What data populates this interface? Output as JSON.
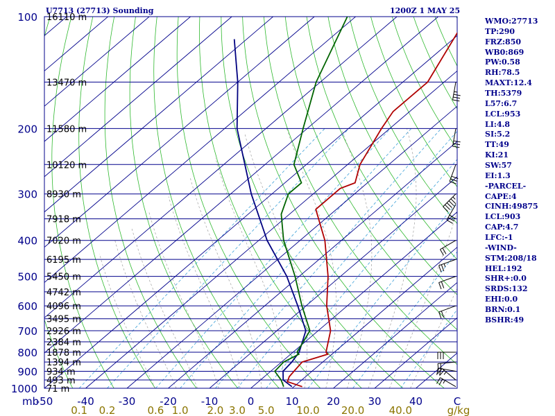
{
  "header": {
    "station": "U7713 (27713) Sounding",
    "time": "1200Z  1 MAY 25"
  },
  "indices": [
    "WMO:27713",
    "TP:290",
    "FRZ:850",
    "WB0:869",
    "PW:0.58",
    "RH:78.5",
    "MAXT:12.4",
    "TH:5379",
    "L57:6.7",
    "LCL:953",
    "LI:4.8",
    "SI:5.2",
    "TT:49",
    "KI:21",
    "SW:57",
    "EI:1.3",
    "-PARCEL-",
    "CAPE:4",
    "CINH:49875",
    "LCL:903",
    "CAP:4.7",
    "LFC:-1",
    "-WIND-",
    "STM:208/18",
    "HEL:192",
    "SHR+:0.0",
    "SRDS:132",
    "EHI:0.0",
    "BRN:0.1",
    "BSHR:49"
  ],
  "colors": {
    "isobar": "#00008b",
    "isotherm": "#00008b",
    "dry_adiabat": "#2db82d",
    "moist_adiabat": "#a0a0a0",
    "mixing_ratio": "#3ca0d8",
    "temperature": "#b00000",
    "dewpoint": "#006400",
    "wetbulb": "#000080",
    "axis_text": "#00008b",
    "mixing_text": "#8b7500"
  },
  "chart_data": {
    "type": "skew-t",
    "pressure_range": [
      1000,
      100
    ],
    "temperature_range": [
      -50,
      50
    ],
    "pressure_ticks": [
      {
        "p": 100,
        "label": "100"
      },
      {
        "p": 200,
        "label": "200"
      },
      {
        "p": 300,
        "label": "300"
      },
      {
        "p": 400,
        "label": "400"
      },
      {
        "p": 500,
        "label": "500"
      },
      {
        "p": 600,
        "label": "600"
      },
      {
        "p": 700,
        "label": "700"
      },
      {
        "p": 800,
        "label": "800"
      },
      {
        "p": 900,
        "label": "900"
      },
      {
        "p": 1000,
        "label": "1000"
      }
    ],
    "pressure_unit": "mb",
    "temperature_ticks": [
      {
        "t": -50,
        "label": "-50"
      },
      {
        "t": -40,
        "label": "-40"
      },
      {
        "t": -30,
        "label": "-30"
      },
      {
        "t": -20,
        "label": "-20"
      },
      {
        "t": -10,
        "label": "-10"
      },
      {
        "t": 0,
        "label": "0"
      },
      {
        "t": 10,
        "label": "10"
      },
      {
        "t": 20,
        "label": "20"
      },
      {
        "t": 30,
        "label": "30"
      },
      {
        "t": 40,
        "label": "40"
      }
    ],
    "temperature_unit": "C",
    "mixing_ratio_labels": [
      {
        "w": 0.1,
        "label": "0.1"
      },
      {
        "w": 0.2,
        "label": "0.2"
      },
      {
        "w": 0.6,
        "label": "0.6"
      },
      {
        "w": 1.0,
        "label": "1.0"
      },
      {
        "w": 2.0,
        "label": "2.0"
      },
      {
        "w": 3.0,
        "label": "3.0"
      },
      {
        "w": 5.0,
        "label": "5.0"
      },
      {
        "w": 10.0,
        "label": "10.0"
      },
      {
        "w": 20.0,
        "label": "20.0"
      },
      {
        "w": 40.0,
        "label": "40.0"
      }
    ],
    "mixing_ratio_unit": "g/kg",
    "heights": [
      {
        "p": 100,
        "label": "16110 m"
      },
      {
        "p": 150,
        "label": "13470 m"
      },
      {
        "p": 200,
        "label": "11580 m"
      },
      {
        "p": 250,
        "label": "10120 m"
      },
      {
        "p": 300,
        "label": "8930 m"
      },
      {
        "p": 350,
        "label": "7918 m"
      },
      {
        "p": 400,
        "label": "7020 m"
      },
      {
        "p": 450,
        "label": "6195 m"
      },
      {
        "p": 500,
        "label": "5450 m"
      },
      {
        "p": 550,
        "label": "4742 m"
      },
      {
        "p": 600,
        "label": "4096 m"
      },
      {
        "p": 650,
        "label": "3495 m"
      },
      {
        "p": 700,
        "label": "2926 m"
      },
      {
        "p": 750,
        "label": "2384 m"
      },
      {
        "p": 800,
        "label": "1878 m"
      },
      {
        "p": 850,
        "label": "1394 m"
      },
      {
        "p": 900,
        "label": "934 m"
      },
      {
        "p": 950,
        "label": "493 m"
      },
      {
        "p": 1000,
        "label": "71 m"
      }
    ],
    "temperature": [
      {
        "p": 990,
        "t": 12.0
      },
      {
        "p": 960,
        "t": 7.0
      },
      {
        "p": 930,
        "t": 6.0
      },
      {
        "p": 850,
        "t": 5.0
      },
      {
        "p": 810,
        "t": 9.0
      },
      {
        "p": 800,
        "t": 8.0
      },
      {
        "p": 700,
        "t": 3.0
      },
      {
        "p": 600,
        "t": -5.0
      },
      {
        "p": 500,
        "t": -13.0
      },
      {
        "p": 400,
        "t": -24.0
      },
      {
        "p": 330,
        "t": -35.0
      },
      {
        "p": 300,
        "t": -35.0
      },
      {
        "p": 290,
        "t": -35.0
      },
      {
        "p": 280,
        "t": -33.0
      },
      {
        "p": 250,
        "t": -37.0
      },
      {
        "p": 200,
        "t": -42.0
      },
      {
        "p": 180,
        "t": -44.0
      },
      {
        "p": 150,
        "t": -44.0
      },
      {
        "p": 100,
        "t": -53.0
      }
    ],
    "dewpoint": [
      {
        "p": 990,
        "t": 7.5
      },
      {
        "p": 950,
        "t": 5.0
      },
      {
        "p": 900,
        "t": 1.0
      },
      {
        "p": 850,
        "t": 0.5
      },
      {
        "p": 810,
        "t": 2.0
      },
      {
        "p": 800,
        "t": 1.0
      },
      {
        "p": 700,
        "t": -2.0
      },
      {
        "p": 600,
        "t": -11.0
      },
      {
        "p": 500,
        "t": -21.0
      },
      {
        "p": 400,
        "t": -34.0
      },
      {
        "p": 340,
        "t": -42.0
      },
      {
        "p": 300,
        "t": -46.0
      },
      {
        "p": 280,
        "t": -46.0
      },
      {
        "p": 250,
        "t": -53.0
      },
      {
        "p": 200,
        "t": -61.0
      },
      {
        "p": 150,
        "t": -71.0
      },
      {
        "p": 100,
        "t": -82.0
      }
    ],
    "wetbulb": [
      {
        "p": 990,
        "t": 9.5
      },
      {
        "p": 950,
        "t": 5.5
      },
      {
        "p": 900,
        "t": 3.0
      },
      {
        "p": 850,
        "t": 2.5
      },
      {
        "p": 800,
        "t": 1.5
      },
      {
        "p": 700,
        "t": -3.0
      },
      {
        "p": 600,
        "t": -12.0
      },
      {
        "p": 500,
        "t": -23.0
      },
      {
        "p": 400,
        "t": -38.0
      },
      {
        "p": 300,
        "t": -55.0
      },
      {
        "p": 200,
        "t": -77.0
      },
      {
        "p": 150,
        "t": -90.0
      },
      {
        "p": 115,
        "t": -103.0
      }
    ],
    "winds": [
      {
        "p": 990,
        "dir": 300,
        "spd": 25
      },
      {
        "p": 950,
        "dir": 310,
        "spd": 25
      },
      {
        "p": 900,
        "dir": 280,
        "spd": 20
      },
      {
        "p": 850,
        "dir": 265,
        "spd": 20
      },
      {
        "p": 800,
        "dir": 270,
        "spd": 30
      },
      {
        "p": 600,
        "dir": 250,
        "spd": 20
      },
      {
        "p": 500,
        "dir": 250,
        "spd": 20
      },
      {
        "p": 450,
        "dir": 250,
        "spd": 25
      },
      {
        "p": 400,
        "dir": 240,
        "spd": 20
      },
      {
        "p": 320,
        "dir": 210,
        "spd": 30
      },
      {
        "p": 300,
        "dir": 225,
        "spd": 55
      },
      {
        "p": 250,
        "dir": 200,
        "spd": 30
      },
      {
        "p": 200,
        "dir": 190,
        "spd": 30
      },
      {
        "p": 150,
        "dir": 190,
        "spd": 35
      }
    ],
    "grid": true
  }
}
